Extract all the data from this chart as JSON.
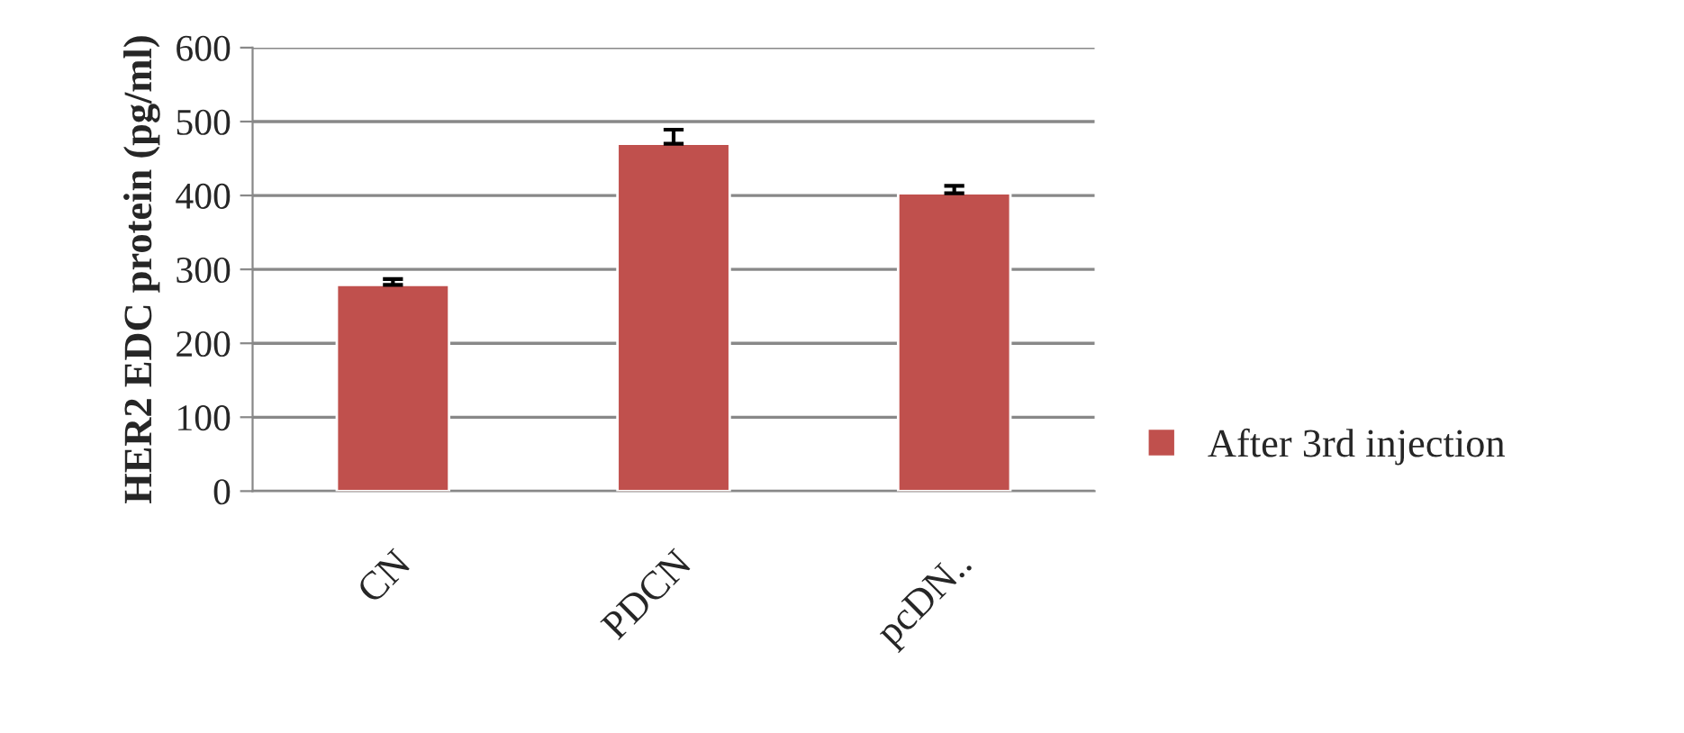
{
  "chart_data": {
    "type": "bar",
    "ylabel": "HER2 EDC protein (pg/ml)",
    "categories": [
      "CN",
      "PDCN",
      "pcDN.."
    ],
    "series": [
      {
        "name": "After 3rd injection",
        "color": "#c0504d",
        "values": [
          279,
          470,
          403
        ],
        "errors": [
          8,
          19,
          10
        ]
      }
    ],
    "ylim": [
      0,
      600
    ],
    "yticks": [
      0,
      100,
      200,
      300,
      400,
      500,
      600
    ],
    "grid": "y",
    "legend": "right"
  }
}
